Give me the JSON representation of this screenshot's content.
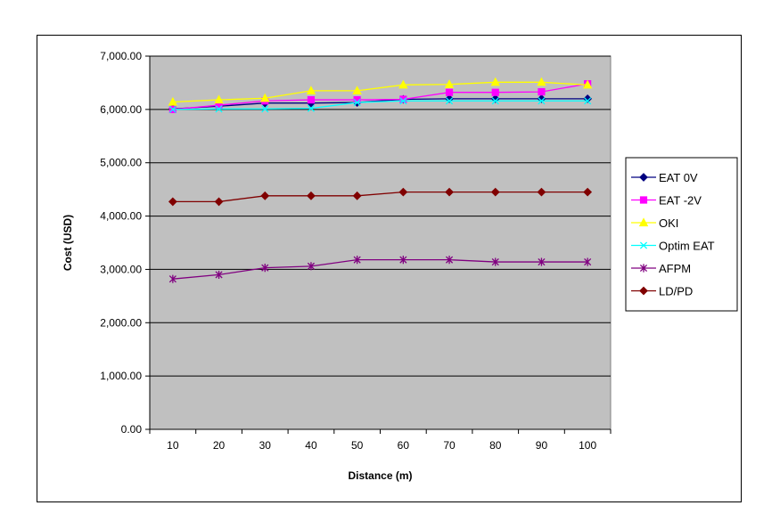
{
  "chart_data": {
    "type": "line",
    "title": "",
    "xlabel": "Distance (m)",
    "ylabel": "Cost (USD)",
    "x": [
      10,
      20,
      30,
      40,
      50,
      60,
      70,
      80,
      90,
      100
    ],
    "x_tick_labels": [
      "10",
      "20",
      "30",
      "40",
      "50",
      "60",
      "70",
      "80",
      "90",
      "100"
    ],
    "ylim": [
      0,
      7000
    ],
    "y_ticks": [
      0,
      1000,
      2000,
      3000,
      4000,
      5000,
      6000,
      7000
    ],
    "y_tick_labels": [
      "0.00",
      "1,000.00",
      "2,000.00",
      "3,000.00",
      "4,000.00",
      "5,000.00",
      "6,000.00",
      "7,000.00"
    ],
    "grid": "horizontal",
    "plot_background": "#c0c0c0",
    "legend_position": "right",
    "series": [
      {
        "name": "EAT 0V",
        "color": "#000080",
        "marker": "diamond",
        "values": [
          6010,
          6060,
          6120,
          6120,
          6130,
          6190,
          6200,
          6200,
          6200,
          6200
        ]
      },
      {
        "name": "EAT -2V",
        "color": "#ff00ff",
        "marker": "square",
        "values": [
          6000,
          6080,
          6160,
          6180,
          6180,
          6190,
          6320,
          6320,
          6330,
          6480
        ]
      },
      {
        "name": "OKI",
        "color": "#ffff00",
        "marker": "triangle",
        "values": [
          6140,
          6180,
          6210,
          6350,
          6350,
          6460,
          6470,
          6510,
          6510,
          6460
        ]
      },
      {
        "name": "Optim EAT",
        "color": "#00ffff",
        "marker": "x",
        "values": [
          6000,
          6010,
          6010,
          6020,
          6130,
          6160,
          6160,
          6160,
          6160,
          6160
        ]
      },
      {
        "name": "AFPM",
        "color": "#800080",
        "marker": "star",
        "values": [
          2820,
          2900,
          3030,
          3060,
          3180,
          3180,
          3180,
          3140,
          3140,
          3140
        ]
      },
      {
        "name": "LD/PD",
        "color": "#800000",
        "marker": "diamond",
        "values": [
          4270,
          4270,
          4380,
          4380,
          4380,
          4450,
          4450,
          4450,
          4450,
          4450
        ]
      }
    ]
  }
}
